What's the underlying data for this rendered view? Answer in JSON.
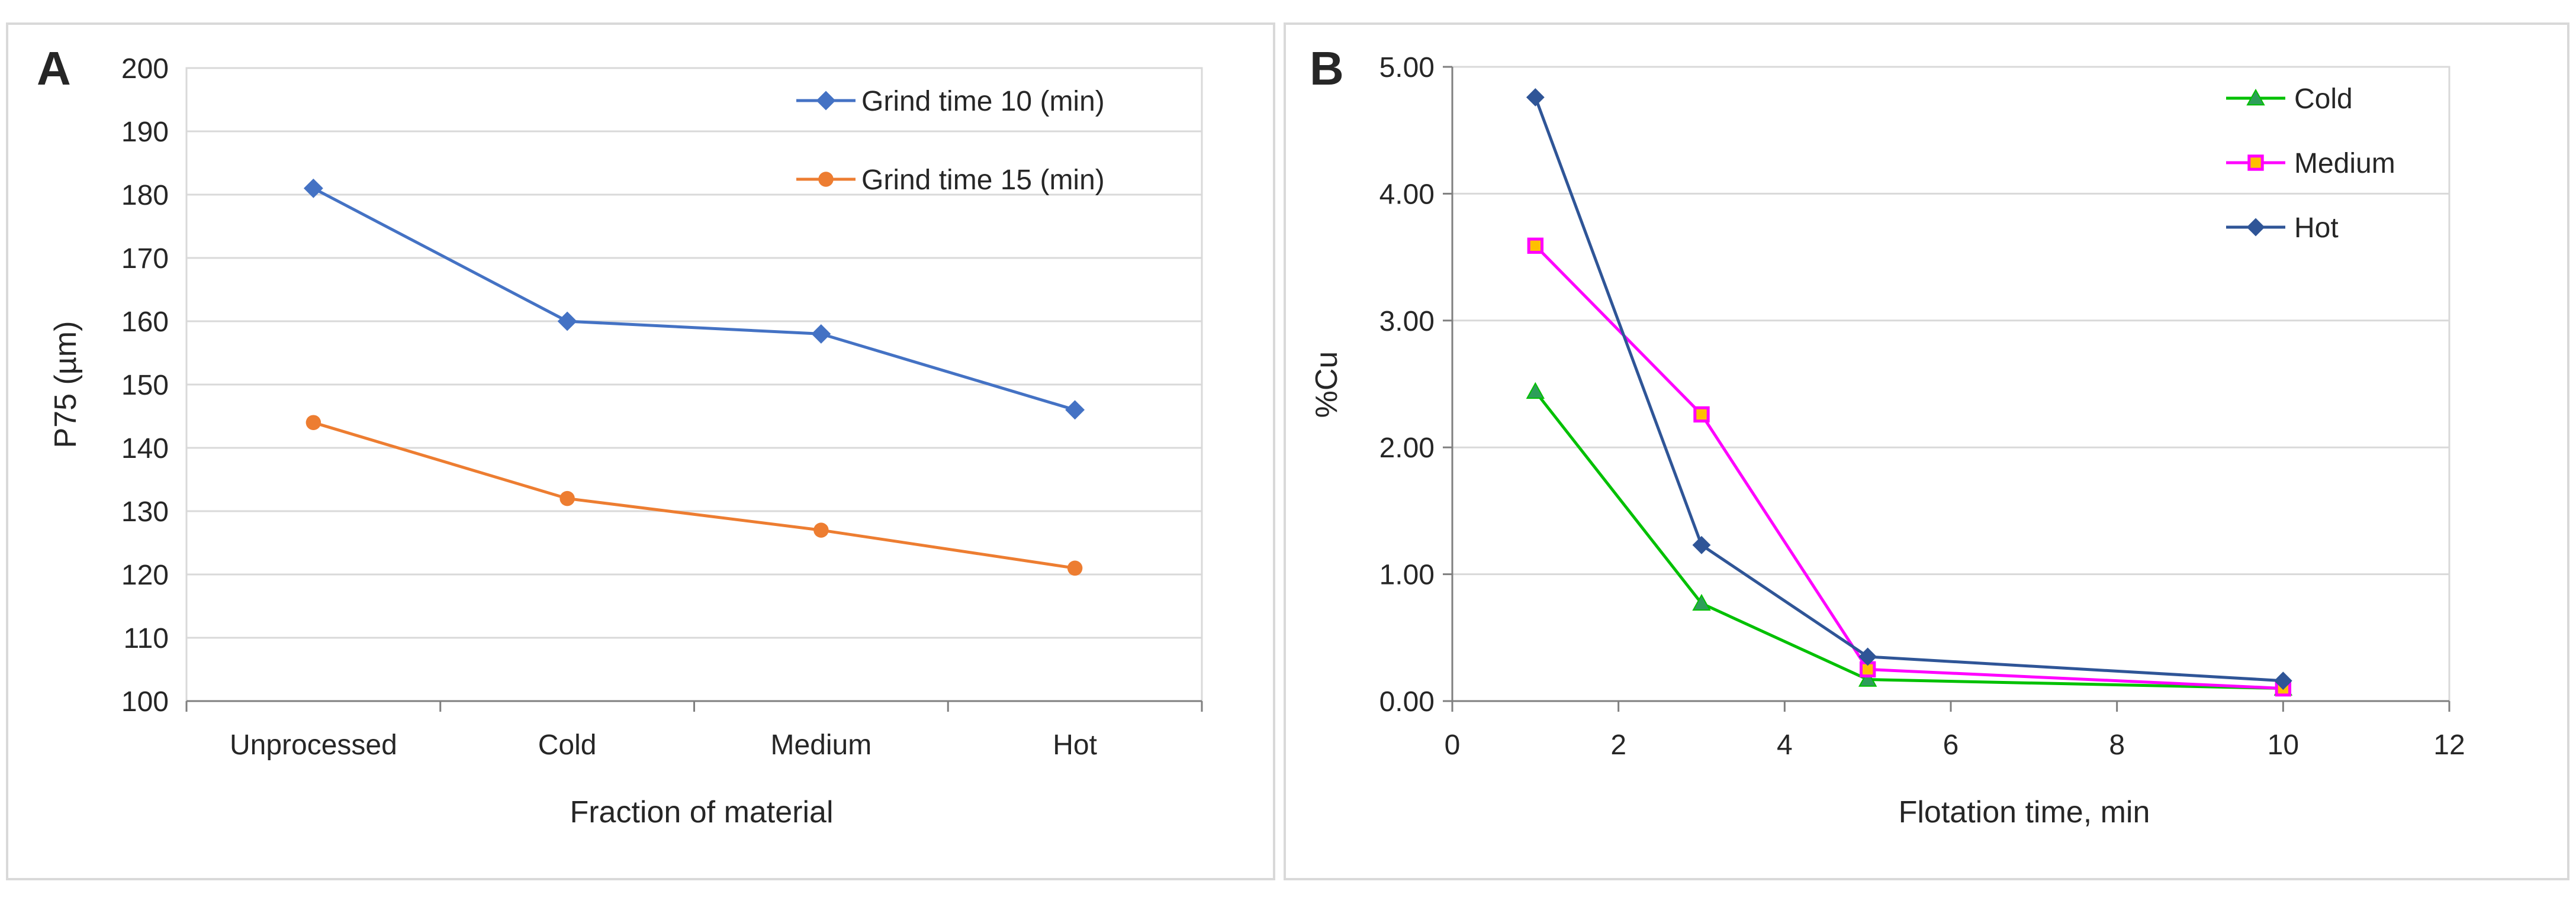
{
  "chart_data": [
    {
      "panel_label": "A",
      "type": "line",
      "title": "",
      "xlabel": "Fraction of material",
      "ylabel": "P75 (µm)",
      "categories": [
        "Unprocessed",
        "Cold",
        "Medium",
        "Hot"
      ],
      "ylim": [
        100,
        200
      ],
      "yticks": [
        100,
        110,
        120,
        130,
        140,
        150,
        160,
        170,
        180,
        190,
        200
      ],
      "grid": true,
      "legend_position": "top-right",
      "series": [
        {
          "name": "Grind time 10 (min)",
          "color": "#4472C4",
          "marker": "diamond",
          "values": [
            181,
            160,
            158,
            146
          ]
        },
        {
          "name": "Grind time 15 (min)",
          "color": "#ED7D31",
          "marker": "circle",
          "values": [
            144,
            132,
            127,
            121
          ]
        }
      ]
    },
    {
      "panel_label": "B",
      "type": "line",
      "title": "",
      "xlabel": "Flotation time, min",
      "ylabel": "%Cu",
      "xlim": [
        0,
        12
      ],
      "xticks": [
        0,
        2,
        4,
        6,
        8,
        10,
        12
      ],
      "ylim": [
        0,
        5
      ],
      "yticks": [
        "0.00",
        "1.00",
        "2.00",
        "3.00",
        "4.00",
        "5.00"
      ],
      "grid": true,
      "legend_position": "top-right",
      "series": [
        {
          "name": "Cold",
          "color": "#00C000",
          "marker_fill": "#2E9E5A",
          "marker": "triangle",
          "x": [
            1,
            3,
            5,
            10
          ],
          "y": [
            2.44,
            0.77,
            0.17,
            0.1
          ]
        },
        {
          "name": "Medium",
          "color": "#FF00FF",
          "marker_fill": "#FFC000",
          "marker": "square",
          "x": [
            1,
            3,
            5,
            10
          ],
          "y": [
            3.59,
            2.26,
            0.25,
            0.1
          ]
        },
        {
          "name": "Hot",
          "color": "#2F5597",
          "marker_fill": "#2F5597",
          "marker": "diamond",
          "x": [
            1,
            3,
            5,
            10
          ],
          "y": [
            4.76,
            1.23,
            0.35,
            0.16
          ]
        }
      ]
    }
  ]
}
